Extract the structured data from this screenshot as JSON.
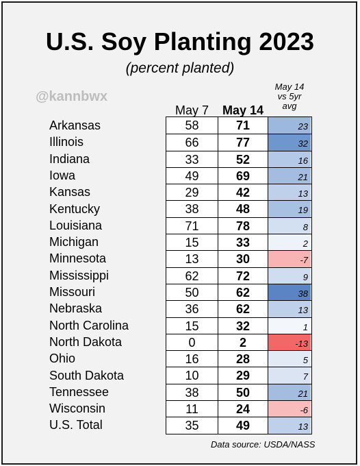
{
  "chart_data": {
    "type": "table",
    "title": "U.S. Soy Planting 2023",
    "subtitle": "(percent planted)",
    "columns": [
      "May 7",
      "May 14",
      [
        "May 14",
        "vs 5yr",
        "avg"
      ]
    ],
    "rows": [
      {
        "state": "Arkansas",
        "may7": 58,
        "may14": 71,
        "diff": 23,
        "color": "#9db8de"
      },
      {
        "state": "Illinois",
        "may7": 66,
        "may14": 77,
        "diff": 32,
        "color": "#6f96cd"
      },
      {
        "state": "Indiana",
        "may7": 33,
        "may14": 52,
        "diff": 16,
        "color": "#b4c9e7"
      },
      {
        "state": "Iowa",
        "may7": 49,
        "may14": 69,
        "diff": 21,
        "color": "#a3bce0"
      },
      {
        "state": "Kansas",
        "may7": 29,
        "may14": 42,
        "diff": 13,
        "color": "#bfd0ea"
      },
      {
        "state": "Kentucky",
        "may7": 38,
        "may14": 48,
        "diff": 19,
        "color": "#a8c0e2"
      },
      {
        "state": "Louisiana",
        "may7": 71,
        "may14": 78,
        "diff": 8,
        "color": "#d3e0f1"
      },
      {
        "state": "Michigan",
        "may7": 15,
        "may14": 33,
        "diff": 2,
        "color": "#eef3fa"
      },
      {
        "state": "Minnesota",
        "may7": 13,
        "may14": 30,
        "diff": -7,
        "color": "#f8b4b4"
      },
      {
        "state": "Mississippi",
        "may7": 62,
        "may14": 72,
        "diff": 9,
        "color": "#d0ddf0"
      },
      {
        "state": "Missouri",
        "may7": 50,
        "may14": 62,
        "diff": 38,
        "color": "#5b84c4"
      },
      {
        "state": "Nebraska",
        "may7": 36,
        "may14": 62,
        "diff": 13,
        "color": "#bfd0ea"
      },
      {
        "state": "North Carolina",
        "may7": 15,
        "may14": 32,
        "diff": 1,
        "color": "#f3f6fb"
      },
      {
        "state": "North Dakota",
        "may7": 0,
        "may14": 2,
        "diff": -13,
        "color": "#f26868"
      },
      {
        "state": "Ohio",
        "may7": 16,
        "may14": 28,
        "diff": 5,
        "color": "#e2eaf5"
      },
      {
        "state": "South Dakota",
        "may7": 10,
        "may14": 29,
        "diff": 7,
        "color": "#dae4f3"
      },
      {
        "state": "Tennessee",
        "may7": 38,
        "may14": 50,
        "diff": 21,
        "color": "#a3bce0"
      },
      {
        "state": "Wisconsin",
        "may7": 11,
        "may14": 24,
        "diff": -6,
        "color": "#f8bcbc"
      },
      {
        "state": "U.S. Total",
        "may7": 35,
        "may14": 49,
        "diff": 13,
        "color": "#bfd0ea"
      }
    ]
  },
  "header": {
    "title": "U.S. Soy Planting 2023",
    "subtitle": "(percent planted)",
    "handle": "@kannbwx",
    "col_may7": "May 7",
    "col_may14": "May 14",
    "col_diff_line1": "May 14",
    "col_diff_line2": "vs 5yr",
    "col_diff_line3": "avg"
  },
  "footer": {
    "source": "Data source: USDA/NASS"
  }
}
